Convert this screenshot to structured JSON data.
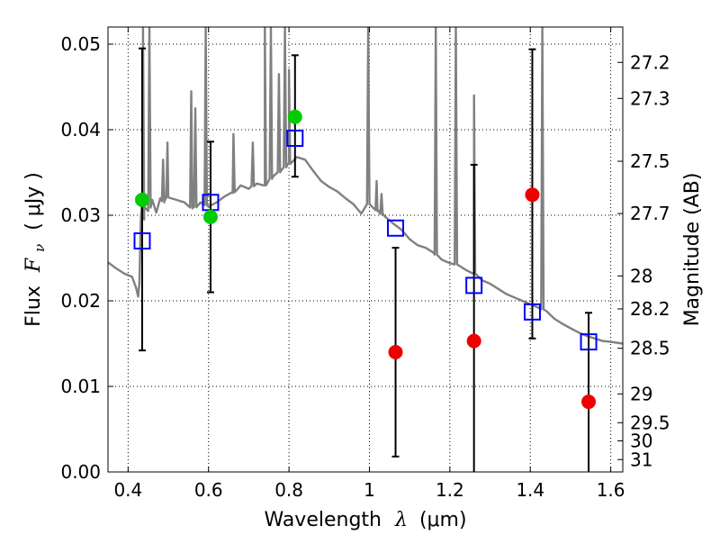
{
  "chart_data": {
    "type": "scatter",
    "xlabel_prefix": "Wavelength",
    "xlabel_symbol": "λ",
    "xlabel_unit": "(μm)",
    "ylabel_prefix": "Flux",
    "ylabel_symbol": "F",
    "ylabel_subscript": "ν",
    "ylabel_unit": "( μJy )",
    "y2label": "Magnitude (AB)",
    "xlim": [
      0.35,
      1.63
    ],
    "ylim": [
      0.0,
      0.052
    ],
    "grid": true,
    "x_ticks": [
      0.4,
      0.6,
      0.8,
      1.0,
      1.2,
      1.4,
      1.6
    ],
    "x_tick_labels": [
      "0.4",
      "0.6",
      "0.8",
      "1",
      "1.2",
      "1.4",
      "1.6"
    ],
    "y_ticks": [
      0.0,
      0.01,
      0.02,
      0.03,
      0.04,
      0.05
    ],
    "y_tick_labels": [
      "0.00",
      "0.01",
      "0.02",
      "0.03",
      "0.04",
      "0.05"
    ],
    "mag_ticks": [
      "27.2",
      "27.3",
      "27.5",
      "27.7",
      "28",
      "28.2",
      "28.5",
      "29",
      "29.5",
      "30",
      "31"
    ],
    "colors": {
      "template": "#808080",
      "model": "#0000ff",
      "detection": "#00cc00",
      "nondetection": "#ee0000",
      "errorbar": "#000000",
      "grid": "#000000"
    },
    "model_points": [
      {
        "x": 0.435,
        "y": 0.027
      },
      {
        "x": 0.605,
        "y": 0.0315
      },
      {
        "x": 0.815,
        "y": 0.039
      },
      {
        "x": 1.065,
        "y": 0.0285
      },
      {
        "x": 1.26,
        "y": 0.0218
      },
      {
        "x": 1.405,
        "y": 0.0187
      },
      {
        "x": 1.545,
        "y": 0.0152
      }
    ],
    "detections": [
      {
        "x": 0.435,
        "y": 0.0318,
        "ylo": 0.0142,
        "yhi": 0.0495
      },
      {
        "x": 0.605,
        "y": 0.0298,
        "ylo": 0.021,
        "yhi": 0.0386
      },
      {
        "x": 0.815,
        "y": 0.0415,
        "ylo": 0.0345,
        "yhi": 0.0487
      }
    ],
    "nondetections": [
      {
        "x": 1.065,
        "y": 0.014,
        "ylo": 0.0018,
        "yhi": 0.0262
      },
      {
        "x": 1.26,
        "y": 0.0153,
        "ylo": -0.0015,
        "yhi": 0.0359
      },
      {
        "x": 1.405,
        "y": 0.0324,
        "ylo": 0.0156,
        "yhi": 0.0494
      },
      {
        "x": 1.545,
        "y": 0.0082,
        "ylo": -0.0025,
        "yhi": 0.0186
      }
    ],
    "template_spectrum": [
      [
        0.35,
        0.0245
      ],
      [
        0.37,
        0.0238
      ],
      [
        0.39,
        0.0232
      ],
      [
        0.41,
        0.0228
      ],
      [
        0.42,
        0.0215
      ],
      [
        0.425,
        0.0205
      ],
      [
        0.428,
        0.022
      ],
      [
        0.432,
        0.03
      ],
      [
        0.437,
        0.031
      ],
      [
        0.44,
        0.0295
      ],
      [
        0.45,
        0.0305
      ],
      [
        0.46,
        0.0318
      ],
      [
        0.47,
        0.0303
      ],
      [
        0.48,
        0.032
      ],
      [
        0.49,
        0.0315
      ],
      [
        0.5,
        0.0322
      ],
      [
        0.52,
        0.0318
      ],
      [
        0.54,
        0.0315
      ],
      [
        0.56,
        0.0308
      ],
      [
        0.57,
        0.031
      ],
      [
        0.58,
        0.0315
      ],
      [
        0.6,
        0.031
      ],
      [
        0.62,
        0.0315
      ],
      [
        0.64,
        0.0322
      ],
      [
        0.66,
        0.0326
      ],
      [
        0.68,
        0.0335
      ],
      [
        0.7,
        0.0331
      ],
      [
        0.72,
        0.0337
      ],
      [
        0.74,
        0.0335
      ],
      [
        0.76,
        0.0345
      ],
      [
        0.78,
        0.0352
      ],
      [
        0.8,
        0.036
      ],
      [
        0.82,
        0.0368
      ],
      [
        0.84,
        0.0365
      ],
      [
        0.86,
        0.0352
      ],
      [
        0.88,
        0.034
      ],
      [
        0.9,
        0.0333
      ],
      [
        0.92,
        0.0328
      ],
      [
        0.94,
        0.032
      ],
      [
        0.96,
        0.0313
      ],
      [
        0.98,
        0.0302
      ],
      [
        1.0,
        0.0315
      ],
      [
        1.02,
        0.0305
      ],
      [
        1.04,
        0.0298
      ],
      [
        1.06,
        0.029
      ],
      [
        1.08,
        0.0283
      ],
      [
        1.1,
        0.0272
      ],
      [
        1.12,
        0.0265
      ],
      [
        1.14,
        0.0262
      ],
      [
        1.16,
        0.0256
      ],
      [
        1.18,
        0.0248
      ],
      [
        1.2,
        0.0244
      ],
      [
        1.22,
        0.0242
      ],
      [
        1.24,
        0.0236
      ],
      [
        1.26,
        0.0232
      ],
      [
        1.28,
        0.0224
      ],
      [
        1.3,
        0.022
      ],
      [
        1.32,
        0.0214
      ],
      [
        1.34,
        0.0208
      ],
      [
        1.36,
        0.0204
      ],
      [
        1.38,
        0.02
      ],
      [
        1.4,
        0.0196
      ],
      [
        1.42,
        0.0192
      ],
      [
        1.44,
        0.0188
      ],
      [
        1.46,
        0.0179
      ],
      [
        1.48,
        0.0173
      ],
      [
        1.5,
        0.0168
      ],
      [
        1.52,
        0.0163
      ],
      [
        1.54,
        0.0159
      ],
      [
        1.56,
        0.0156
      ],
      [
        1.58,
        0.0153
      ],
      [
        1.6,
        0.0152
      ],
      [
        1.63,
        0.015
      ]
    ],
    "template_lines": [
      {
        "x": 0.437,
        "peak": 0.052
      },
      {
        "x": 0.453,
        "peak": 0.052
      },
      {
        "x": 0.487,
        "peak": 0.0365
      },
      {
        "x": 0.498,
        "peak": 0.0385
      },
      {
        "x": 0.557,
        "peak": 0.0445
      },
      {
        "x": 0.567,
        "peak": 0.0425
      },
      {
        "x": 0.593,
        "peak": 0.052
      },
      {
        "x": 0.662,
        "peak": 0.0395
      },
      {
        "x": 0.71,
        "peak": 0.0385
      },
      {
        "x": 0.74,
        "peak": 0.052
      },
      {
        "x": 0.755,
        "peak": 0.052
      },
      {
        "x": 0.775,
        "peak": 0.0465
      },
      {
        "x": 0.79,
        "peak": 0.052
      },
      {
        "x": 0.8,
        "peak": 0.047
      },
      {
        "x": 0.997,
        "peak": 0.052
      },
      {
        "x": 1.018,
        "peak": 0.034
      },
      {
        "x": 1.03,
        "peak": 0.0325
      },
      {
        "x": 1.165,
        "peak": 0.052
      },
      {
        "x": 1.215,
        "peak": 0.052
      },
      {
        "x": 1.26,
        "peak": 0.044
      },
      {
        "x": 1.43,
        "peak": 0.052
      }
    ]
  }
}
